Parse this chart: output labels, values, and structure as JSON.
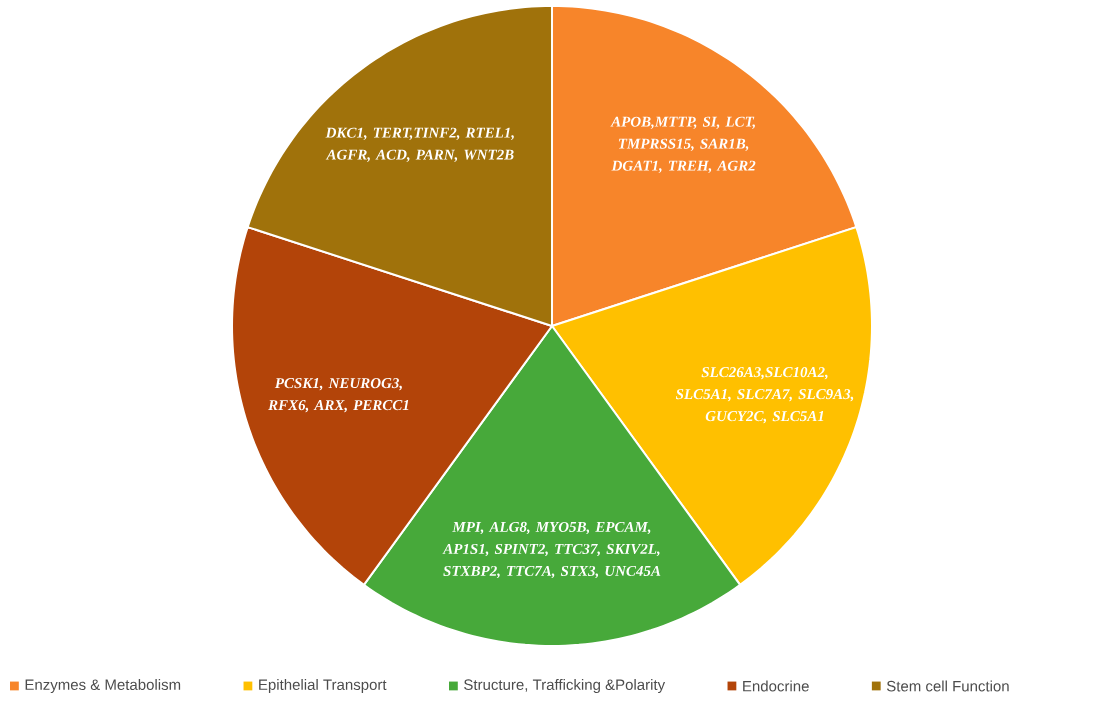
{
  "chart_data": {
    "type": "pie",
    "categories": [
      "Enzymes & Metabolism",
      "Epithelial Transport",
      "Structure, Trafficking &Polarity",
      "Endocrine",
      "Stem cell Function"
    ],
    "values": [
      20,
      20,
      20,
      20,
      20
    ],
    "colors": [
      "#f7852a",
      "#ffc000",
      "#47a93a",
      "#b34409",
      "#a0720b"
    ],
    "annotations": [
      "APOB,MTTP, SI, LCT, TMPRSS15, SAR1B, DGAT1, TREH, AGR2",
      "SLC26A3,SLC10A2, SLC5A1, SLC7A7, SLC9A3, GUCY2C, SLC5A1",
      "MPI, ALG8, MYO5B, EPCAM, AP1S1, SPINT2, TTC37, SKIV2L, STXBP2, TTC7A, STX3, UNC45A",
      "PCSK1, NEUROG3, RFX6, ARX, PERCC1",
      "DKC1, TERT,TINF2, RTEL1, AGFR, ACD, PARN, WNT2B"
    ],
    "legend": "bottom"
  }
}
